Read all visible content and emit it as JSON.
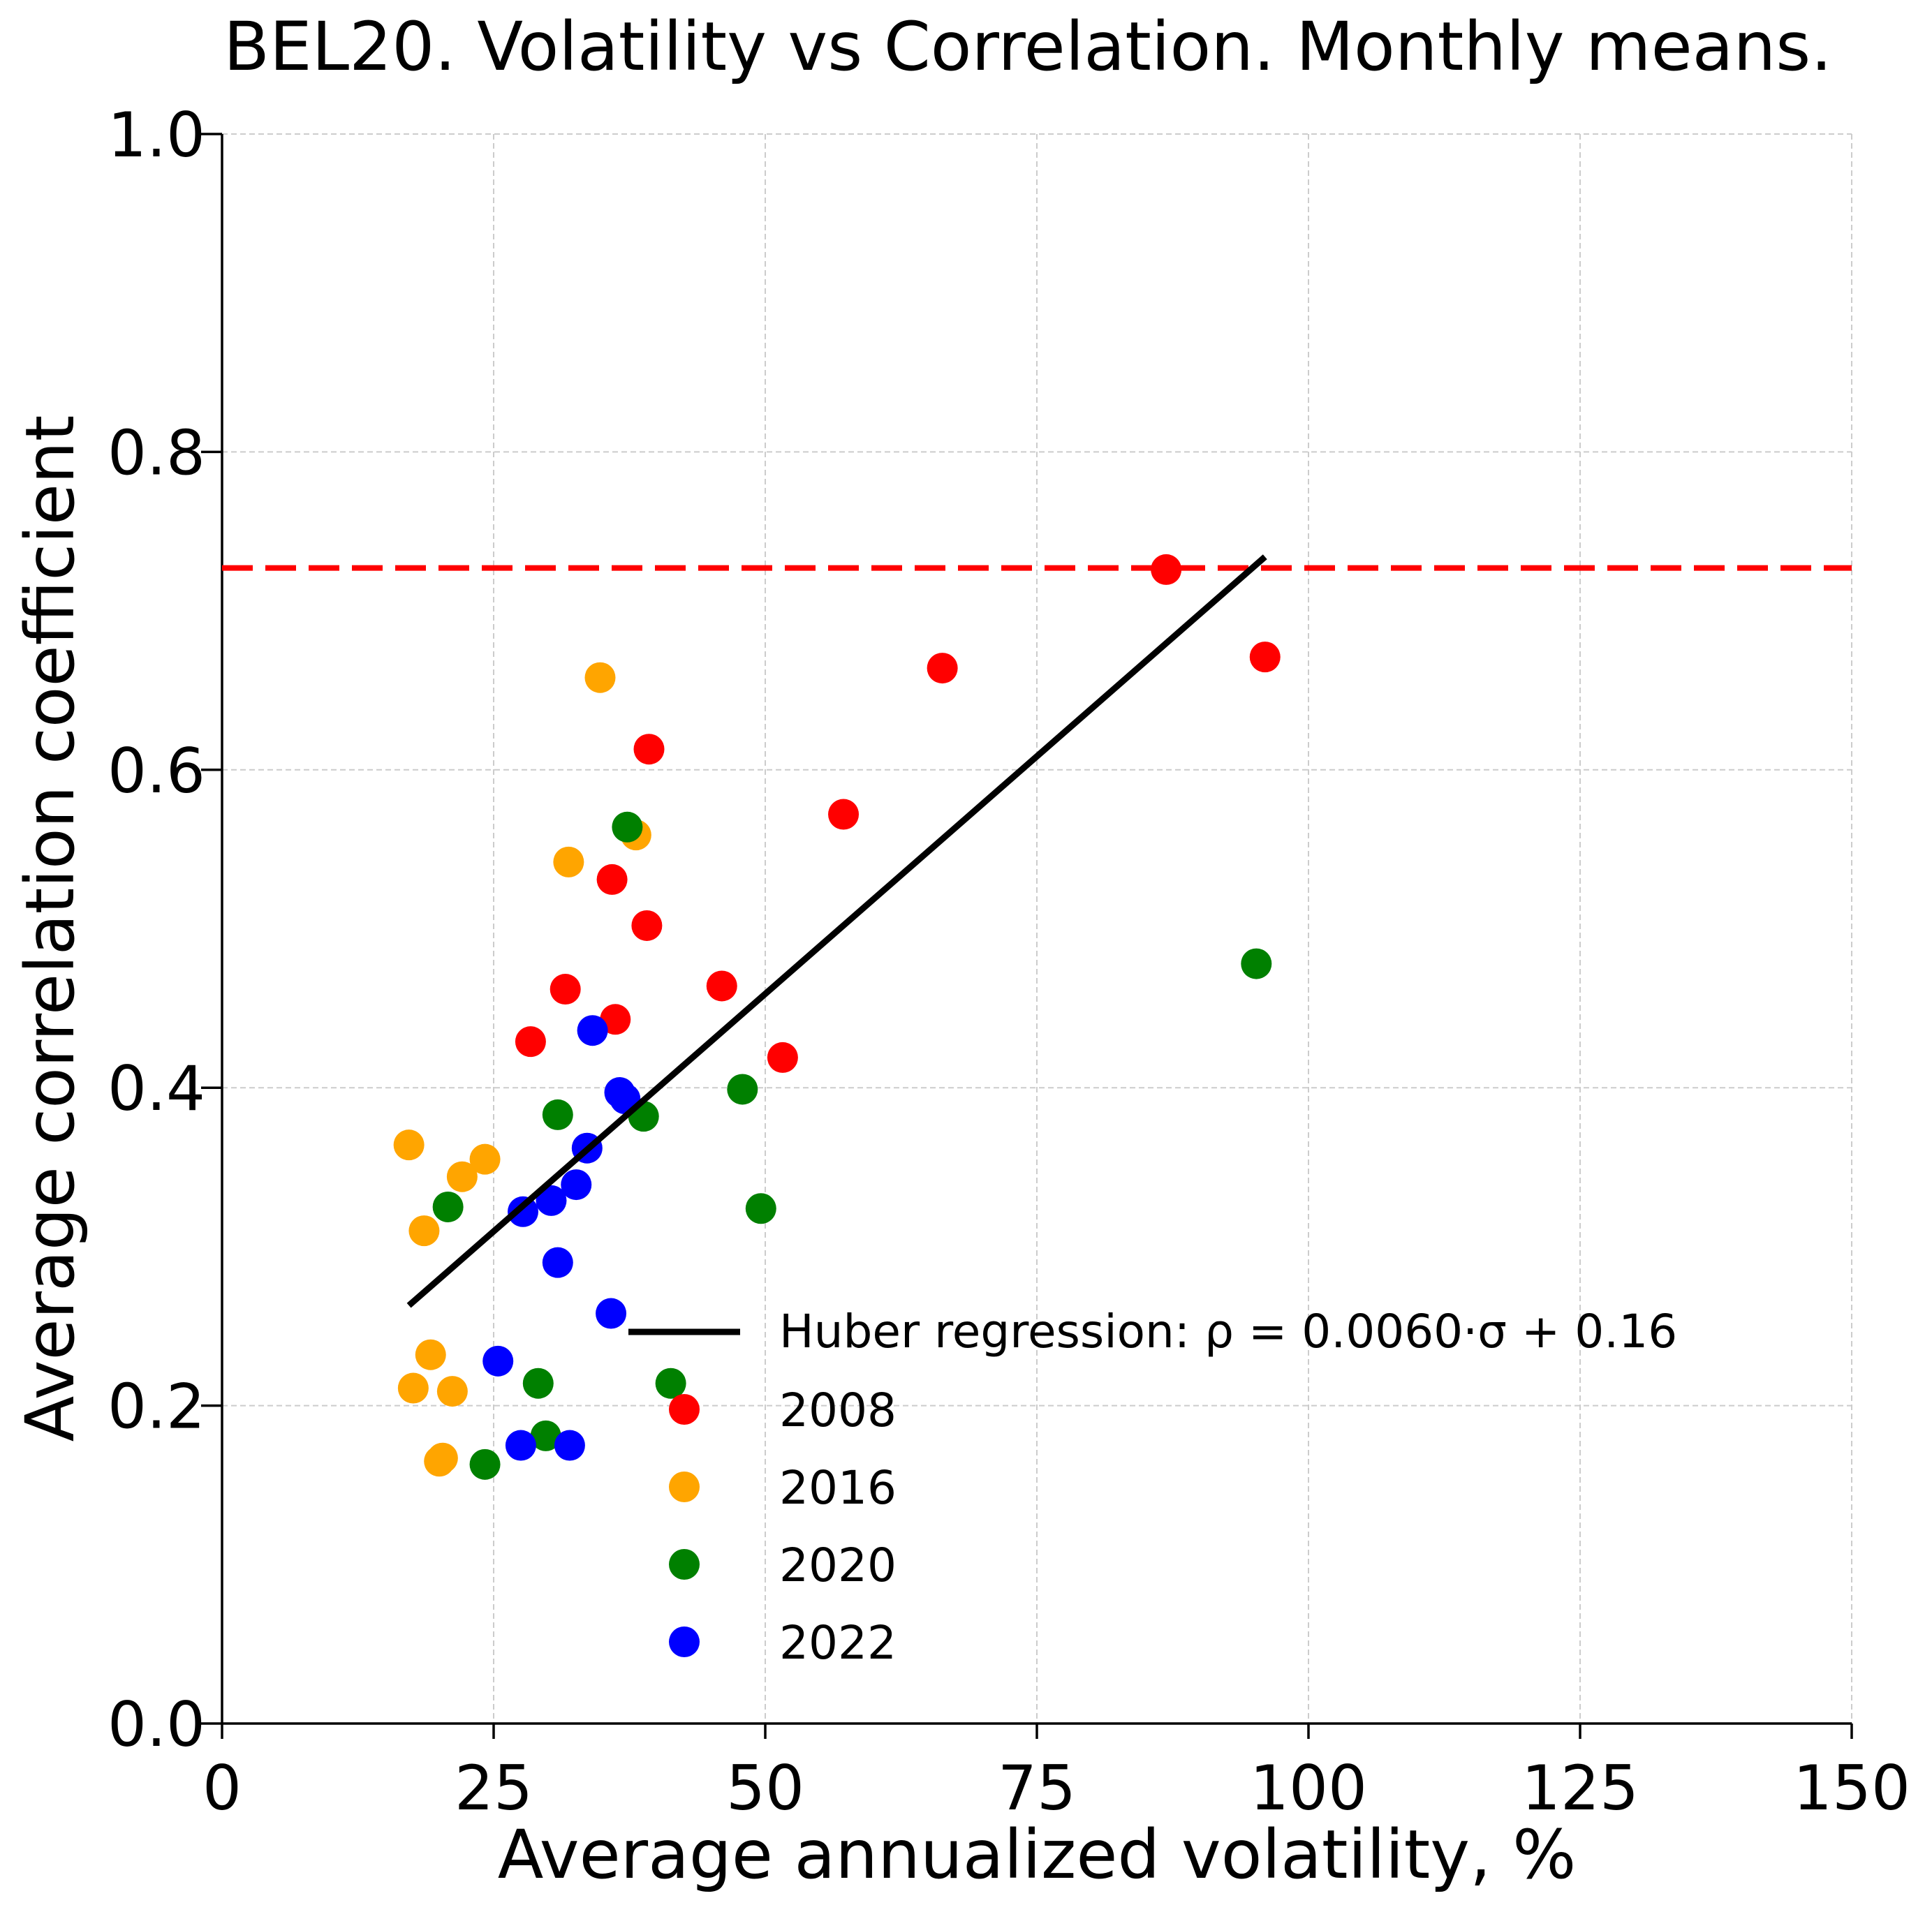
{
  "chart_data": {
    "type": "scatter",
    "title": "BEL20. Volatility vs Correlation. Monthly means.",
    "xlabel": "Average annualized volatility, %",
    "ylabel": "Average correlation coefficient",
    "xlim": [
      0,
      150
    ],
    "ylim": [
      0,
      1.0
    ],
    "xticks": [
      "0",
      "25",
      "50",
      "75",
      "100",
      "125",
      "150"
    ],
    "yticks": [
      "0.0",
      "0.2",
      "0.4",
      "0.6",
      "0.8",
      "1.0"
    ],
    "grid": true,
    "legend_position": "lower-right",
    "reference_line": {
      "y": 0.727,
      "color": "#ff0000",
      "style": "dashed"
    },
    "regression": {
      "label": "Huber regression: ρ = 0.0060·σ + 0.16",
      "slope": 0.006,
      "intercept": 0.16,
      "x_range": [
        17.2,
        96.0
      ],
      "y_range": [
        0.263,
        0.734
      ],
      "color": "#000000"
    },
    "series": [
      {
        "name": "2008",
        "color": "#ff0000",
        "points": [
          [
            28.4,
            0.429
          ],
          [
            31.6,
            0.462
          ],
          [
            35.9,
            0.531
          ],
          [
            36.2,
            0.443
          ],
          [
            39.1,
            0.502
          ],
          [
            39.3,
            0.613
          ],
          [
            46.0,
            0.464
          ],
          [
            51.6,
            0.419
          ],
          [
            57.2,
            0.572
          ],
          [
            66.3,
            0.664
          ],
          [
            86.9,
            0.726
          ],
          [
            96.0,
            0.671
          ]
        ]
      },
      {
        "name": "2016",
        "color": "#ffa500",
        "points": [
          [
            17.2,
            0.364
          ],
          [
            17.6,
            0.211
          ],
          [
            18.6,
            0.31
          ],
          [
            19.2,
            0.232
          ],
          [
            20.0,
            0.165
          ],
          [
            20.3,
            0.167
          ],
          [
            21.2,
            0.209
          ],
          [
            22.1,
            0.344
          ],
          [
            24.2,
            0.355
          ],
          [
            31.9,
            0.542
          ],
          [
            34.8,
            0.658
          ],
          [
            38.1,
            0.559
          ]
        ]
      },
      {
        "name": "2020",
        "color": "#008000",
        "points": [
          [
            20.8,
            0.325
          ],
          [
            24.2,
            0.163
          ],
          [
            29.1,
            0.214
          ],
          [
            29.8,
            0.181
          ],
          [
            30.9,
            0.383
          ],
          [
            37.3,
            0.564
          ],
          [
            38.8,
            0.382
          ],
          [
            41.3,
            0.214
          ],
          [
            47.9,
            0.399
          ],
          [
            49.6,
            0.324
          ],
          [
            95.2,
            0.478
          ]
        ]
      },
      {
        "name": "2022",
        "color": "#0000ff",
        "points": [
          [
            25.4,
            0.228
          ],
          [
            27.5,
            0.175
          ],
          [
            27.7,
            0.322
          ],
          [
            30.3,
            0.329
          ],
          [
            30.9,
            0.29
          ],
          [
            32.0,
            0.175
          ],
          [
            32.6,
            0.339
          ],
          [
            33.6,
            0.362
          ],
          [
            34.1,
            0.436
          ],
          [
            35.8,
            0.258
          ],
          [
            36.6,
            0.397
          ],
          [
            37.1,
            0.393
          ]
        ]
      }
    ]
  }
}
